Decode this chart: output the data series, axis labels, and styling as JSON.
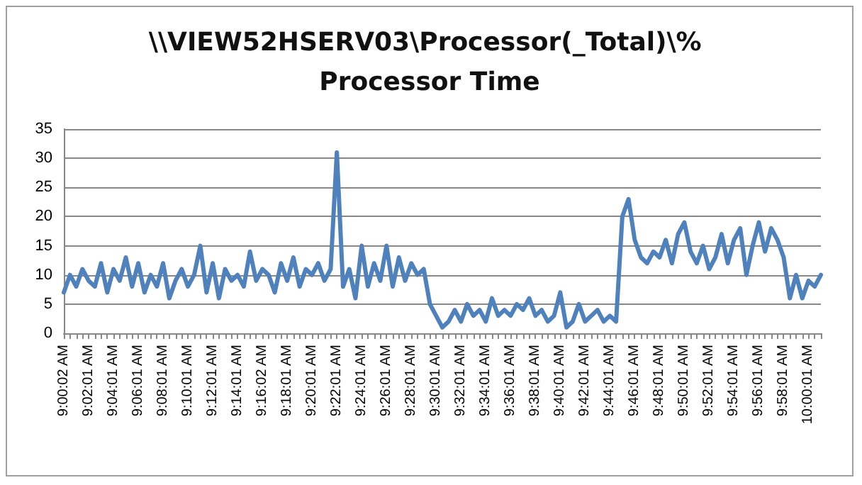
{
  "chart_data": {
    "type": "line",
    "title": "\\\\VIEW52HSERV03\\Processor(_Total)\\% Processor Time",
    "categories": [
      "9:00:02 AM",
      null,
      null,
      null,
      "9:02:01 AM",
      null,
      null,
      null,
      "9:04:01 AM",
      null,
      null,
      null,
      "9:06:01 AM",
      null,
      null,
      null,
      "9:08:01 AM",
      null,
      null,
      null,
      "9:10:01 AM",
      null,
      null,
      null,
      "9:12:01 AM",
      null,
      null,
      null,
      "9:14:01 AM",
      null,
      null,
      null,
      "9:16:02 AM",
      null,
      null,
      null,
      "9:18:01 AM",
      null,
      null,
      null,
      "9:20:01 AM",
      null,
      null,
      null,
      "9:22:01 AM",
      null,
      null,
      null,
      "9:24:01 AM",
      null,
      null,
      null,
      "9:26:01 AM",
      null,
      null,
      null,
      "9:28:01 AM",
      null,
      null,
      null,
      "9:30:01 AM",
      null,
      null,
      null,
      "9:32:01 AM",
      null,
      null,
      null,
      "9:34:01 AM",
      null,
      null,
      null,
      "9:36:01 AM",
      null,
      null,
      null,
      "9:38:01 AM",
      null,
      null,
      null,
      "9:40:01 AM",
      null,
      null,
      null,
      "9:42:01 AM",
      null,
      null,
      null,
      "9:44:01 AM",
      null,
      null,
      null,
      "9:46:01 AM",
      null,
      null,
      null,
      "9:48:01 AM",
      null,
      null,
      null,
      "9:50:01 AM",
      null,
      null,
      null,
      "9:52:01 AM",
      null,
      null,
      null,
      "9:54:01 AM",
      null,
      null,
      null,
      "9:56:01 AM",
      null,
      null,
      null,
      "9:58:01 AM",
      null,
      null,
      null,
      "10:00:01 AM",
      null,
      null
    ],
    "series": [
      {
        "color": "#4f81bd",
        "values": [
          7,
          10,
          8,
          11,
          9,
          8,
          12,
          7,
          11,
          9,
          13,
          8,
          12,
          7,
          10,
          8,
          12,
          6,
          9,
          11,
          8,
          10,
          15,
          7,
          12,
          6,
          11,
          9,
          10,
          8,
          14,
          9,
          11,
          10,
          7,
          12,
          9,
          13,
          8,
          11,
          10,
          12,
          9,
          11,
          31,
          8,
          11,
          6,
          15,
          8,
          12,
          9,
          15,
          8,
          13,
          9,
          12,
          10,
          11,
          5,
          3,
          1,
          2,
          4,
          2,
          5,
          3,
          4,
          2,
          6,
          3,
          4,
          3,
          5,
          4,
          6,
          3,
          4,
          2,
          3,
          7,
          1,
          2,
          5,
          2,
          3,
          4,
          2,
          3,
          2,
          20,
          23,
          16,
          13,
          12,
          14,
          13,
          16,
          12,
          17,
          19,
          14,
          12,
          15,
          11,
          13,
          17,
          12,
          16,
          18,
          10,
          15,
          19,
          14,
          18,
          16,
          13,
          6,
          10,
          6,
          9,
          8,
          10
        ]
      }
    ],
    "ylim": [
      0,
      35
    ],
    "yticks": [
      0,
      5,
      10,
      15,
      20,
      25,
      30,
      35
    ],
    "grid": "y",
    "marker": "none",
    "line_style": "solid"
  }
}
